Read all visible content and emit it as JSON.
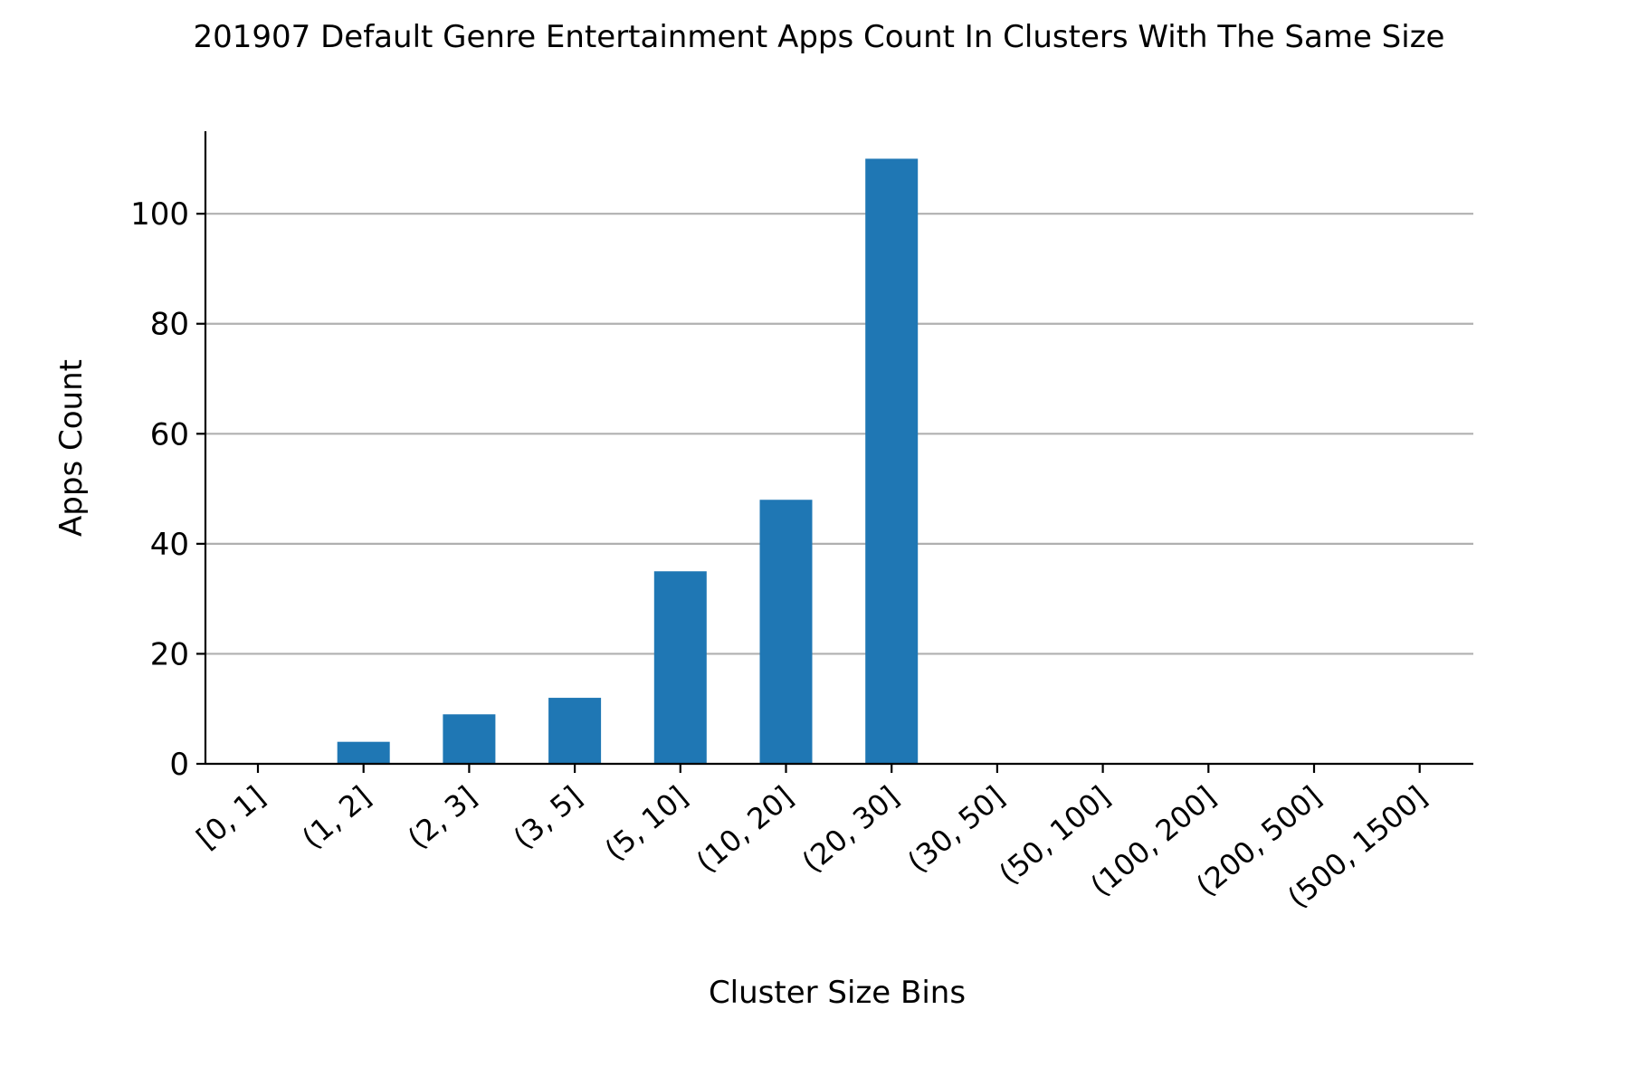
{
  "chart_data": {
    "type": "bar",
    "title": "201907 Default Genre Entertainment Apps Count In Clusters With The Same Size",
    "xlabel": "Cluster Size Bins",
    "ylabel": "Apps Count",
    "categories": [
      "[0, 1]",
      "(1, 2]",
      "(2, 3]",
      "(3, 5]",
      "(5, 10]",
      "(10, 20]",
      "(20, 30]",
      "(30, 50]",
      "(50, 100]",
      "(100, 200]",
      "(200, 500]",
      "(500, 1500]"
    ],
    "values": [
      0,
      4,
      9,
      12,
      35,
      48,
      110,
      0,
      0,
      0,
      0,
      0
    ],
    "ylim": [
      0,
      115
    ],
    "yticks": [
      0,
      20,
      40,
      60,
      80,
      100
    ],
    "grid": "horizontal",
    "colors": {
      "bar": "#1f77b4",
      "grid": "#b0b0b0",
      "axis": "#000000"
    }
  }
}
